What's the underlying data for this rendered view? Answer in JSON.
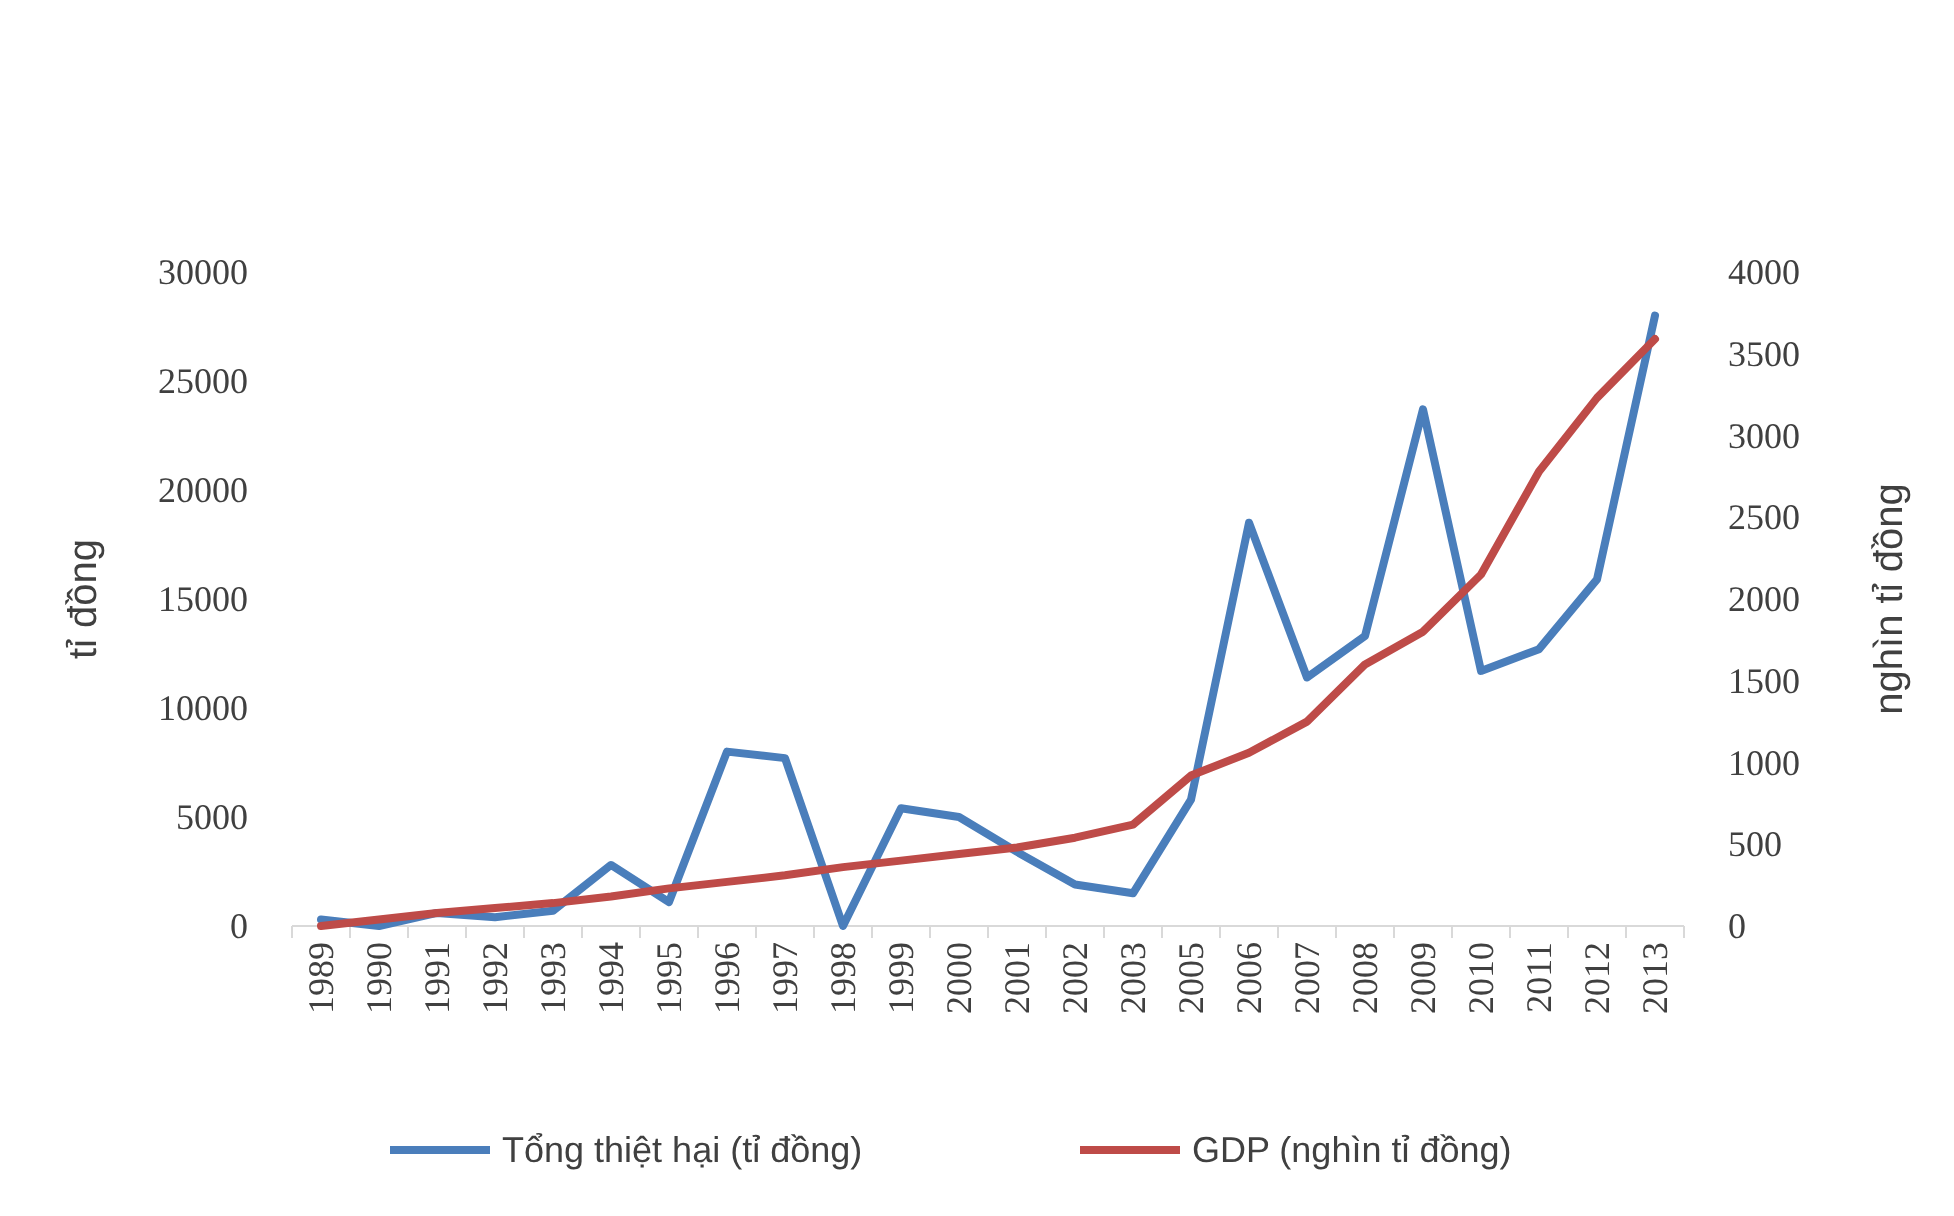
{
  "chart_data": {
    "type": "line",
    "ylabel": "tỉ đồng",
    "y2label": "nghìn tỉ đồng",
    "categories": [
      "1989",
      "1990",
      "1991",
      "1992",
      "1993",
      "1994",
      "1995",
      "1996",
      "1997",
      "1998",
      "1999",
      "2000",
      "2001",
      "2002",
      "2003",
      "2005",
      "2006",
      "2007",
      "2008",
      "2009",
      "2010",
      "2011",
      "2012",
      "2013"
    ],
    "series": [
      {
        "name": "Tổng thiệt hại (tỉ đồng)",
        "color": "#4a7ebb",
        "values": [
          300,
          0,
          600,
          400,
          700,
          2800,
          1100,
          8000,
          7700,
          0,
          5400,
          5000,
          3400,
          1900,
          1500,
          5800,
          18500,
          11400,
          13300,
          23700,
          11700,
          12700,
          15900,
          28000
        ]
      },
      {
        "name": "GDP (nghìn tỉ đồng)",
        "color": "#be4b48",
        "axis": "y2",
        "values": [
          0,
          40,
          80,
          110,
          140,
          180,
          230,
          270,
          310,
          360,
          400,
          440,
          480,
          540,
          620,
          920,
          1060,
          1250,
          1600,
          1800,
          2150,
          2780,
          3230,
          3590
        ]
      }
    ],
    "ylim": [
      0,
      30000
    ],
    "yticks": [
      0,
      5000,
      10000,
      15000,
      20000,
      25000,
      30000
    ],
    "y2lim": [
      0,
      4000
    ],
    "y2ticks": [
      0,
      500,
      1000,
      1500,
      2000,
      2500,
      3000,
      3500,
      4000
    ],
    "legend": "bottom"
  }
}
